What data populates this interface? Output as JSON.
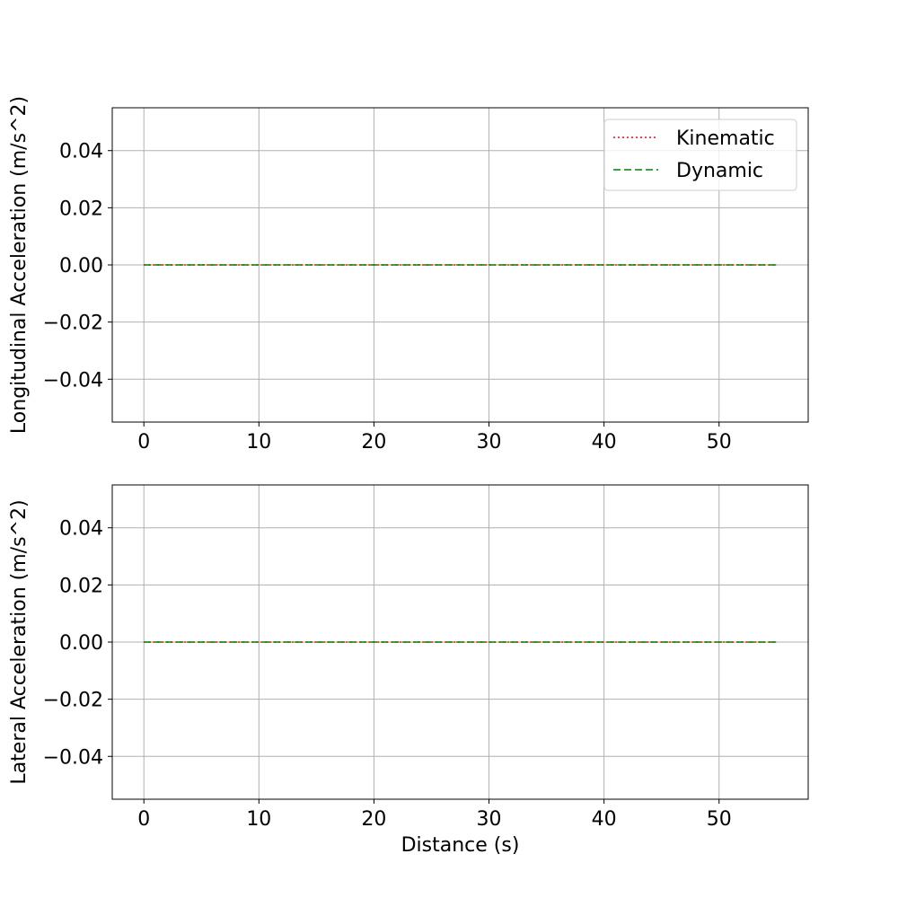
{
  "chart_data": [
    {
      "type": "line",
      "title": "",
      "xlabel": "",
      "ylabel": "Longitudinal Acceleration (m/s^2)",
      "xlim": [
        -2.75,
        57.75
      ],
      "ylim": [
        -0.055,
        0.055
      ],
      "xticks": [
        0,
        10,
        20,
        30,
        40,
        50
      ],
      "xtick_labels": [
        "0",
        "10",
        "20",
        "30",
        "40",
        "50"
      ],
      "yticks": [
        0.04,
        0.02,
        0.0,
        -0.02,
        -0.04
      ],
      "ytick_labels": [
        "0.04",
        "0.02",
        "0.00",
        "−0.02",
        "−0.04"
      ],
      "grid": true,
      "legend": {
        "show": true,
        "placement": "upper right"
      },
      "series": [
        {
          "name": "Kinematic",
          "color": "#ff0000",
          "style": "dotted",
          "x": [
            0,
            55
          ],
          "y": [
            0,
            0
          ]
        },
        {
          "name": "Dynamic",
          "color": "#008000",
          "style": "dashed",
          "x": [
            0,
            55
          ],
          "y": [
            0,
            0
          ]
        }
      ]
    },
    {
      "type": "line",
      "title": "",
      "xlabel": "Distance (s)",
      "ylabel": "Lateral Acceleration (m/s^2)",
      "xlim": [
        -2.75,
        57.75
      ],
      "ylim": [
        -0.055,
        0.055
      ],
      "xticks": [
        0,
        10,
        20,
        30,
        40,
        50
      ],
      "xtick_labels": [
        "0",
        "10",
        "20",
        "30",
        "40",
        "50"
      ],
      "yticks": [
        0.04,
        0.02,
        0.0,
        -0.02,
        -0.04
      ],
      "ytick_labels": [
        "0.04",
        "0.02",
        "0.00",
        "−0.02",
        "−0.04"
      ],
      "grid": true,
      "legend": {
        "show": false
      },
      "series": [
        {
          "color": "#ff0000",
          "style": "dotted",
          "x": [
            0,
            55
          ],
          "y": [
            0,
            0
          ]
        },
        {
          "color": "#008000",
          "style": "dashed",
          "x": [
            0,
            55
          ],
          "y": [
            0,
            0
          ]
        }
      ]
    }
  ]
}
